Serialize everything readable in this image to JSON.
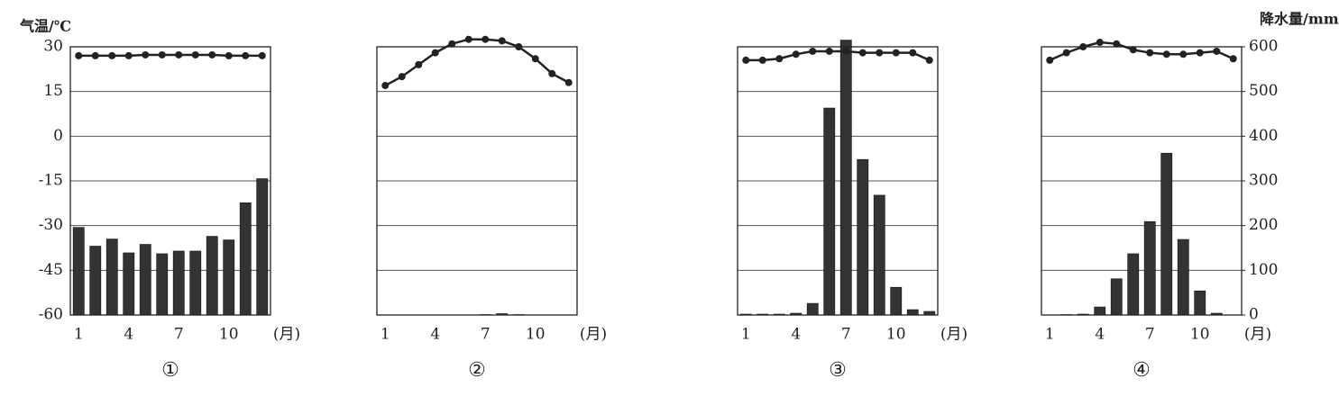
{
  "chart_data": [
    {
      "type": "climate",
      "title": "①",
      "ylabel": "气温/℃",
      "x_unit": "(月)",
      "tick_labels": "left",
      "grid": true,
      "categories": [
        "1",
        null,
        null,
        "4",
        null,
        null,
        "7",
        null,
        null,
        "10",
        null,
        null
      ],
      "ylim": [
        -60,
        30
      ],
      "yticks": [
        -60,
        -45,
        -30,
        -15,
        0,
        15,
        30
      ],
      "y2lim": [
        0,
        600
      ],
      "y2ticks": [
        0,
        100,
        200,
        300,
        400,
        500,
        600
      ],
      "series": [
        {
          "type": "line",
          "color": "#222222",
          "axis": "y",
          "values": [
            27,
            27,
            27,
            27,
            27.3,
            27.3,
            27.3,
            27.3,
            27.3,
            27,
            27,
            27
          ]
        },
        {
          "type": "bar",
          "color": "#333333",
          "axis": "y2",
          "values": [
            196,
            154,
            170,
            139,
            158,
            137,
            143,
            143,
            176,
            168,
            251,
            305
          ]
        }
      ]
    },
    {
      "type": "climate",
      "title": "②",
      "x_unit": "(月)",
      "tick_labels": "none",
      "grid": true,
      "categories": [
        "1",
        null,
        null,
        "4",
        null,
        null,
        "7",
        null,
        null,
        "10",
        null,
        null
      ],
      "ylim": [
        -60,
        30
      ],
      "yticks": [
        -60,
        -45,
        -30,
        -15,
        0,
        15,
        30
      ],
      "y2lim": [
        0,
        600
      ],
      "y2ticks": [
        0,
        100,
        200,
        300,
        400,
        500,
        600
      ],
      "series": [
        {
          "type": "line",
          "color": "#222222",
          "axis": "y",
          "values": [
            17,
            20,
            24,
            28,
            31,
            32.5,
            32.5,
            32,
            30,
            26,
            21,
            18
          ]
        },
        {
          "type": "bar",
          "color": "#333333",
          "axis": "y2",
          "values": [
            0,
            0,
            0,
            0,
            0,
            0,
            1,
            3,
            1,
            0,
            0,
            0
          ]
        }
      ]
    },
    {
      "type": "climate",
      "title": "③",
      "x_unit": "(月)",
      "tick_labels": "none",
      "grid": true,
      "categories": [
        "1",
        null,
        null,
        "4",
        null,
        null,
        "7",
        null,
        null,
        "10",
        null,
        null
      ],
      "ylim": [
        -60,
        30
      ],
      "yticks": [
        -60,
        -45,
        -30,
        -15,
        0,
        15,
        30
      ],
      "y2lim": [
        0,
        600
      ],
      "y2ticks": [
        0,
        100,
        200,
        300,
        400,
        500,
        600
      ],
      "series": [
        {
          "type": "line",
          "color": "#222222",
          "axis": "y",
          "values": [
            25.5,
            25.5,
            26,
            27.5,
            28.5,
            28.5,
            28.5,
            28,
            28,
            28,
            28,
            25.5
          ]
        },
        {
          "type": "bar",
          "color": "#333333",
          "axis": "y2",
          "values": [
            2,
            2,
            2,
            4,
            26,
            463,
            615,
            348,
            268,
            62,
            12,
            8
          ]
        }
      ]
    },
    {
      "type": "climate",
      "title": "④",
      "y2label": "降水量/mm",
      "x_unit": "(月)",
      "tick_labels": "right",
      "grid": true,
      "categories": [
        "1",
        null,
        null,
        "4",
        null,
        null,
        "7",
        null,
        null,
        "10",
        null,
        null
      ],
      "ylim": [
        -60,
        30
      ],
      "yticks": [
        -60,
        -45,
        -30,
        -15,
        0,
        15,
        30
      ],
      "y2lim": [
        0,
        600
      ],
      "y2ticks": [
        0,
        100,
        200,
        300,
        400,
        500,
        600
      ],
      "series": [
        {
          "type": "line",
          "color": "#222222",
          "axis": "y",
          "values": [
            25.5,
            28,
            30,
            31.5,
            31,
            29,
            28,
            27.5,
            27.5,
            28,
            28.5,
            26
          ]
        },
        {
          "type": "bar",
          "color": "#333333",
          "axis": "y2",
          "values": [
            0,
            1,
            2,
            18,
            81,
            137,
            209,
            362,
            169,
            54,
            4,
            0
          ]
        }
      ]
    }
  ]
}
